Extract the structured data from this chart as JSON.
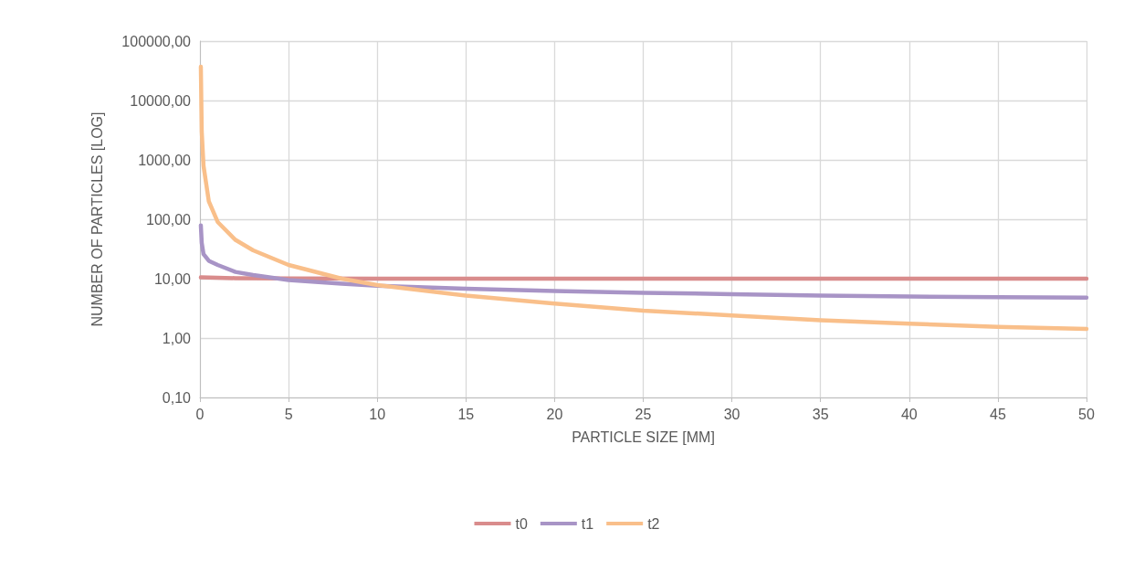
{
  "chart_data": {
    "type": "line",
    "xlabel": "PARTICLE SIZE [MM]",
    "ylabel": "NUMBER OF PARTICLES [LOG]",
    "log": "y",
    "grid": true,
    "legend": "bottom",
    "marker": "none",
    "line_style": "solid",
    "xlim": [
      0,
      50
    ],
    "xticks": [
      0,
      5,
      10,
      15,
      20,
      25,
      30,
      35,
      40,
      45,
      50
    ],
    "ylim": [
      0.1,
      100000
    ],
    "yticks": [
      {
        "value": 0.1,
        "label": "0,10"
      },
      {
        "value": 1,
        "label": "1,00"
      },
      {
        "value": 10,
        "label": "10,00"
      },
      {
        "value": 100,
        "label": "100,00"
      },
      {
        "value": 1000,
        "label": "1000,00"
      },
      {
        "value": 10000,
        "label": "10000,00"
      },
      {
        "value": 100000,
        "label": "100000,00"
      }
    ],
    "series": [
      {
        "name": "t0",
        "color": "#d98c8c",
        "x": [
          0.05,
          2,
          5,
          10,
          20,
          30,
          40,
          50
        ],
        "values": [
          10.5,
          10.2,
          10.1,
          10,
          10,
          10,
          10,
          10
        ]
      },
      {
        "name": "t1",
        "color": "#a894c6",
        "x": [
          0.05,
          0.1,
          0.2,
          0.5,
          1,
          2,
          3,
          5,
          8,
          10,
          15,
          20,
          25,
          30,
          35,
          40,
          45,
          50
        ],
        "values": [
          79,
          40,
          26,
          20,
          17,
          13,
          11.5,
          9.5,
          8.2,
          7.6,
          6.8,
          6.2,
          5.8,
          5.5,
          5.2,
          5,
          4.9,
          4.8
        ]
      },
      {
        "name": "t2",
        "color": "#f9bf8a",
        "x": [
          0.05,
          0.1,
          0.2,
          0.5,
          1,
          2,
          3,
          5,
          8,
          10,
          15,
          20,
          25,
          30,
          35,
          40,
          45,
          50
        ],
        "values": [
          37000,
          3000,
          800,
          200,
          90,
          45,
          30,
          17,
          10,
          7.8,
          5.2,
          3.8,
          2.9,
          2.4,
          2,
          1.75,
          1.55,
          1.43
        ]
      }
    ]
  }
}
